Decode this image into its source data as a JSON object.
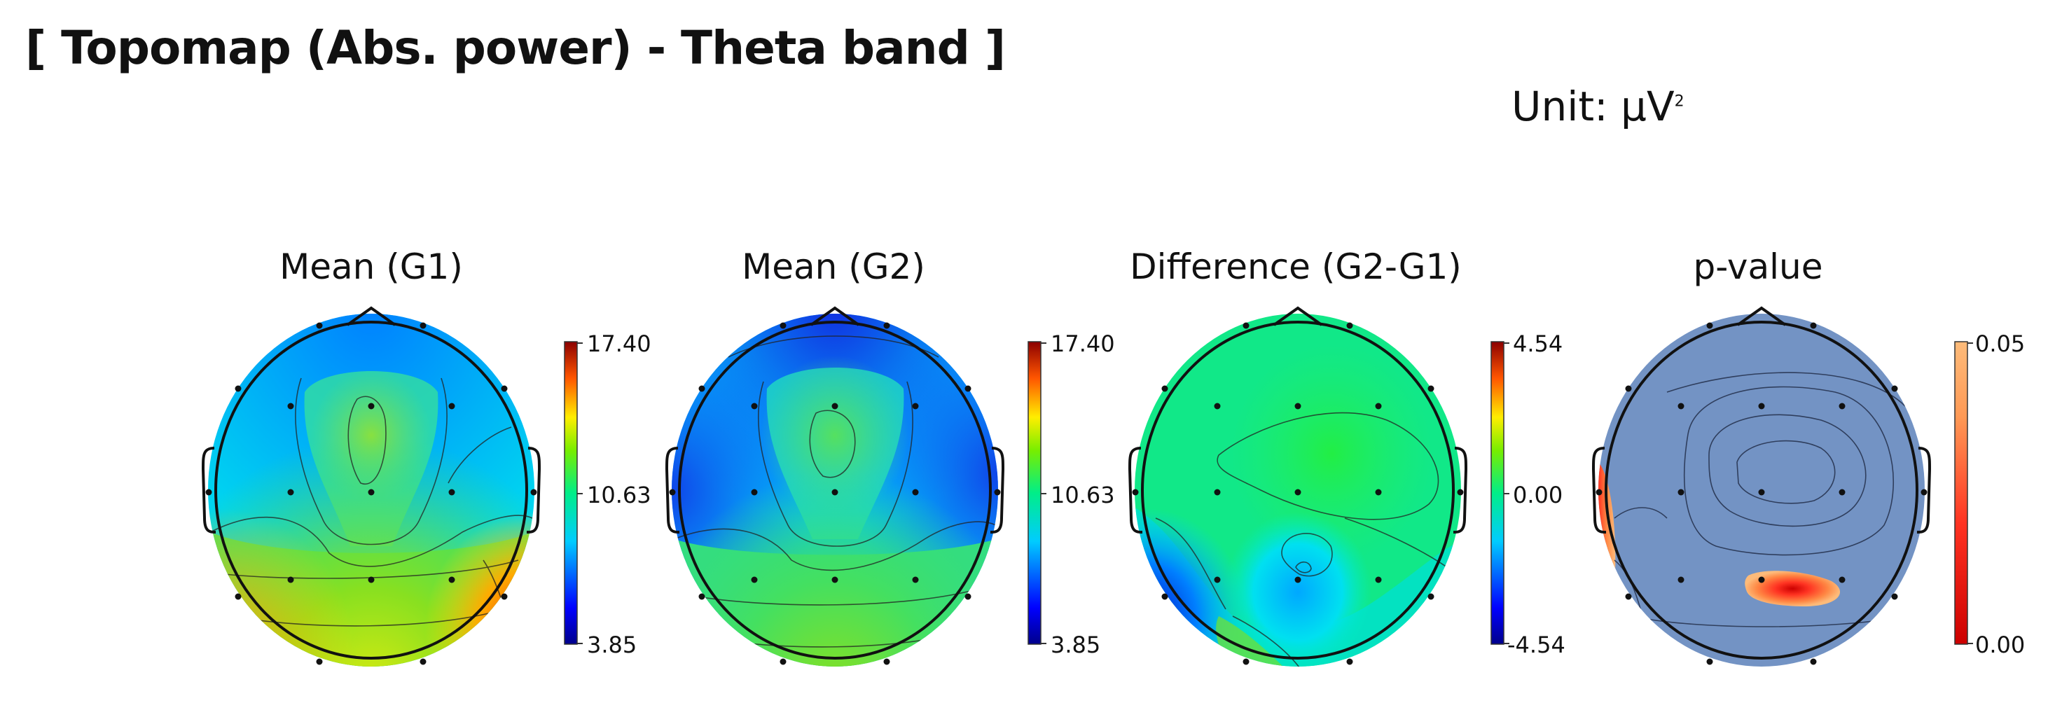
{
  "header": {
    "title": "[ Topomap (Abs. power) - Theta band ]",
    "unit_prefix": "Unit: ",
    "unit_symbol": "μV",
    "unit_sup": "2"
  },
  "chart_data": [
    {
      "type": "heatmap",
      "subtype": "topomap",
      "title": "Mean (G1)",
      "colormap": "jet",
      "colorbar": {
        "min": 3.85,
        "mid": 10.63,
        "max": 17.4,
        "tick_labels": [
          "17.40",
          "10.63",
          "3.85"
        ]
      },
      "channels": 19
    },
    {
      "type": "heatmap",
      "subtype": "topomap",
      "title": "Mean (G2)",
      "colormap": "jet",
      "colorbar": {
        "min": 3.85,
        "mid": 10.63,
        "max": 17.4,
        "tick_labels": [
          "17.40",
          "10.63",
          "3.85"
        ]
      },
      "channels": 19
    },
    {
      "type": "heatmap",
      "subtype": "topomap",
      "title": "Difference (G2-G1)",
      "colormap": "jet",
      "colorbar": {
        "min": -4.54,
        "mid": 0.0,
        "max": 4.54,
        "tick_labels": [
          "4.54",
          "0.00",
          "-4.54"
        ]
      },
      "channels": 19
    },
    {
      "type": "heatmap",
      "subtype": "topomap",
      "title": "p-value",
      "colormap": "hot",
      "colorbar": {
        "min": 0.0,
        "max": 0.05,
        "tick_labels": [
          "0.05",
          "0.00"
        ]
      },
      "channels": 19
    }
  ],
  "colors": {
    "jet_top": "#8b0000",
    "jet_mid": "#00ee88",
    "jet_bottom": "#00008b",
    "pvalue_background": "#7393c4",
    "pvalue_high": "#fdbb7a",
    "pvalue_low": "#cc0000"
  }
}
